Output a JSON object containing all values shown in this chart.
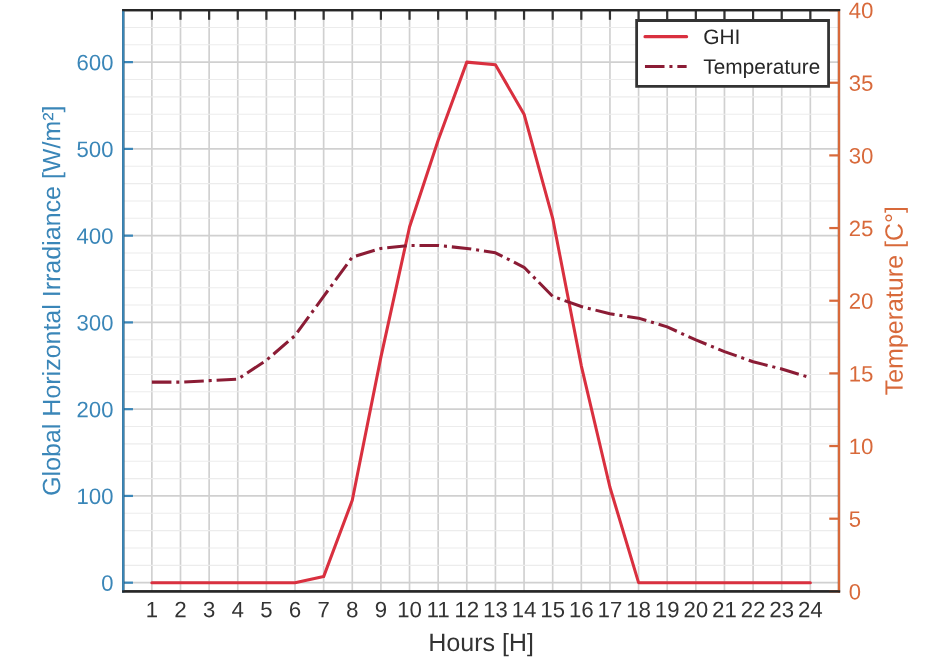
{
  "chart_data": {
    "type": "line",
    "xlabel": "Hours [H]",
    "ylabel": "Global Horizontal Irradiance [W/m²]",
    "y2label": "Temperature [C°]",
    "x": [
      1,
      2,
      3,
      4,
      5,
      6,
      7,
      8,
      9,
      10,
      11,
      12,
      13,
      14,
      15,
      16,
      17,
      18,
      19,
      20,
      21,
      22,
      23,
      24
    ],
    "series": [
      {
        "name": "GHI",
        "color": "#d9303f",
        "line_style": "solid",
        "values": [
          0,
          0,
          0,
          0,
          0,
          0,
          7,
          95,
          260,
          410,
          510,
          600,
          597,
          540,
          420,
          250,
          110,
          0,
          0,
          0,
          0,
          0,
          0,
          0
        ]
      },
      {
        "name": "Temperature",
        "color": "#8b1c35",
        "line_style": "dashdot",
        "axis": "y2",
        "values": [
          14.4,
          14.4,
          14.5,
          14.6,
          15.9,
          17.6,
          20.3,
          23.0,
          23.6,
          23.8,
          23.8,
          23.6,
          23.3,
          22.3,
          20.3,
          19.6,
          19.1,
          18.8,
          18.2,
          17.3,
          16.5,
          15.8,
          15.3,
          14.7
        ]
      }
    ],
    "xlim": [
      0,
      25
    ],
    "xticks": [
      1,
      2,
      3,
      4,
      5,
      6,
      7,
      8,
      9,
      10,
      11,
      12,
      13,
      14,
      15,
      16,
      17,
      18,
      19,
      20,
      21,
      22,
      23,
      24
    ],
    "ylim": [
      -10,
      660
    ],
    "yticks": [
      0,
      100,
      200,
      300,
      400,
      500,
      600
    ],
    "y2lim": [
      0,
      40
    ],
    "y2ticks": [
      0,
      5,
      10,
      15,
      20,
      25,
      30,
      35,
      40
    ],
    "grid": true,
    "legend": "top right"
  }
}
